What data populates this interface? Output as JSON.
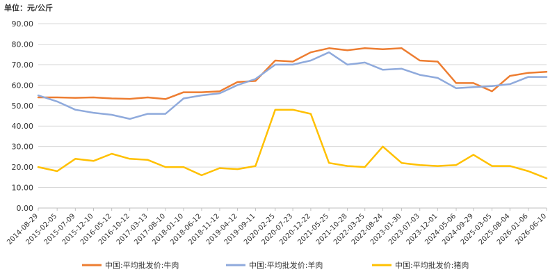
{
  "unit_label": "单位：元/公斤",
  "colors": {
    "beef": "#ED7D31",
    "mutton": "#8FAADC",
    "pork": "#FFC000",
    "grid": "#d9d9d9",
    "axis": "#bfbfbf"
  },
  "chart_data": {
    "type": "line",
    "title": "",
    "xlabel": "",
    "ylabel": "",
    "unit": "元/公斤",
    "ylim": [
      0,
      90
    ],
    "y_ticks": [
      "0.00",
      "10.00",
      "20.00",
      "30.00",
      "40.00",
      "50.00",
      "60.00",
      "70.00",
      "80.00",
      "90.00"
    ],
    "x_ticks": [
      "2014-08-29",
      "2015-02-05",
      "2015-07-09",
      "2015-12-10",
      "2016-05-12",
      "2016-10-12",
      "2017-03-13",
      "2017-08-10",
      "2018-01-10",
      "2018-06-12",
      "2018-11-12",
      "2019-04-12",
      "2019-09-11",
      "2020-02-25",
      "2020-07-23",
      "2020-12-22",
      "2021-05-25",
      "2021-10-28",
      "2022-03-25",
      "2022-08-24",
      "2023-01-30",
      "2023-07-03",
      "2023-12-01",
      "2024-05-06",
      "2024-09-29",
      "2025-03-05",
      "2025-08-04",
      "2026-01-06",
      "2026-06-10"
    ],
    "grid": true,
    "legend_position": "bottom",
    "series": [
      {
        "name": "中国:平均批发价:牛肉",
        "key": "beef",
        "x": [
          "2014-08-29",
          "2015-02-05",
          "2015-07-09",
          "2015-12-10",
          "2016-05-12",
          "2016-10-12",
          "2017-03-13",
          "2017-08-10",
          "2018-01-10",
          "2018-06-12",
          "2018-11-12",
          "2019-04-12",
          "2019-09-11",
          "2020-02-25",
          "2020-07-23",
          "2020-12-22",
          "2021-05-25",
          "2021-10-28",
          "2022-03-25",
          "2022-08-24",
          "2023-01-30",
          "2023-07-03",
          "2023-12-01",
          "2024-05-06",
          "2024-09-29",
          "2025-03-05",
          "2025-08-04",
          "2026-01-06",
          "2026-06-10"
        ],
        "values": [
          54.0,
          54.0,
          53.8,
          54.0,
          53.5,
          53.3,
          54.0,
          53.2,
          56.5,
          56.5,
          57.0,
          61.5,
          62.0,
          72.0,
          71.5,
          76.0,
          78.0,
          77.0,
          78.0,
          77.5,
          78.0,
          72.0,
          71.5,
          61.0,
          61.0,
          57.0,
          64.5,
          66.0,
          66.5
        ]
      },
      {
        "name": "中国:平均批发价:羊肉",
        "key": "mutton",
        "x": [
          "2014-08-29",
          "2015-02-05",
          "2015-07-09",
          "2015-12-10",
          "2016-05-12",
          "2016-10-12",
          "2017-03-13",
          "2017-08-10",
          "2018-01-10",
          "2018-06-12",
          "2018-11-12",
          "2019-04-12",
          "2019-09-11",
          "2020-02-25",
          "2020-07-23",
          "2020-12-22",
          "2021-05-25",
          "2021-10-28",
          "2022-03-25",
          "2022-08-24",
          "2023-01-30",
          "2023-07-03",
          "2023-12-01",
          "2024-05-06",
          "2024-09-29",
          "2025-03-05",
          "2025-08-04",
          "2026-01-06",
          "2026-06-10"
        ],
        "values": [
          55.0,
          52.0,
          48.0,
          46.5,
          45.5,
          43.5,
          46.0,
          46.0,
          53.5,
          55.0,
          56.0,
          60.0,
          63.0,
          70.0,
          70.0,
          72.0,
          76.0,
          70.0,
          71.0,
          67.5,
          68.0,
          65.0,
          63.5,
          58.5,
          59.0,
          59.5,
          60.5,
          64.0,
          64.0
        ]
      },
      {
        "name": "中国:平均批发价:猪肉",
        "key": "pork",
        "x": [
          "2014-08-29",
          "2015-02-05",
          "2015-07-09",
          "2015-12-10",
          "2016-05-12",
          "2016-10-12",
          "2017-03-13",
          "2017-08-10",
          "2018-01-10",
          "2018-06-12",
          "2018-11-12",
          "2019-04-12",
          "2019-09-11",
          "2020-02-25",
          "2020-07-23",
          "2020-12-22",
          "2021-05-25",
          "2021-10-28",
          "2022-03-25",
          "2022-08-24",
          "2023-01-30",
          "2023-07-03",
          "2023-12-01",
          "2024-05-06",
          "2024-09-29",
          "2025-03-05",
          "2025-08-04",
          "2026-01-06",
          "2026-06-10"
        ],
        "values": [
          20.0,
          18.0,
          24.0,
          23.0,
          26.5,
          24.0,
          23.5,
          20.0,
          20.0,
          16.0,
          19.5,
          19.0,
          20.5,
          48.0,
          48.0,
          46.0,
          22.0,
          20.5,
          20.0,
          30.0,
          22.0,
          21.0,
          20.5,
          21.0,
          26.0,
          20.5,
          20.5,
          18.0,
          14.5
        ]
      }
    ]
  }
}
